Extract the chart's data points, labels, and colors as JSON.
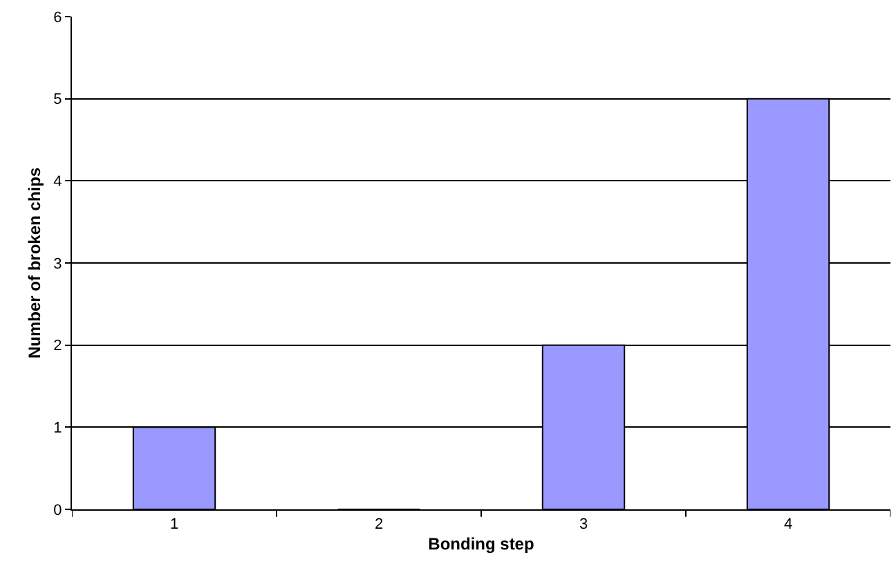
{
  "chart_data": {
    "type": "bar",
    "xlabel": "Bonding step",
    "ylabel": "Number of broken chips",
    "categories": [
      "1",
      "2",
      "3",
      "4"
    ],
    "values": [
      1,
      0,
      2,
      5
    ],
    "color": "#9999ff",
    "ylim": [
      0,
      6
    ],
    "yticks": [
      0,
      1,
      2,
      3,
      4,
      5,
      6
    ],
    "grid": "y"
  }
}
